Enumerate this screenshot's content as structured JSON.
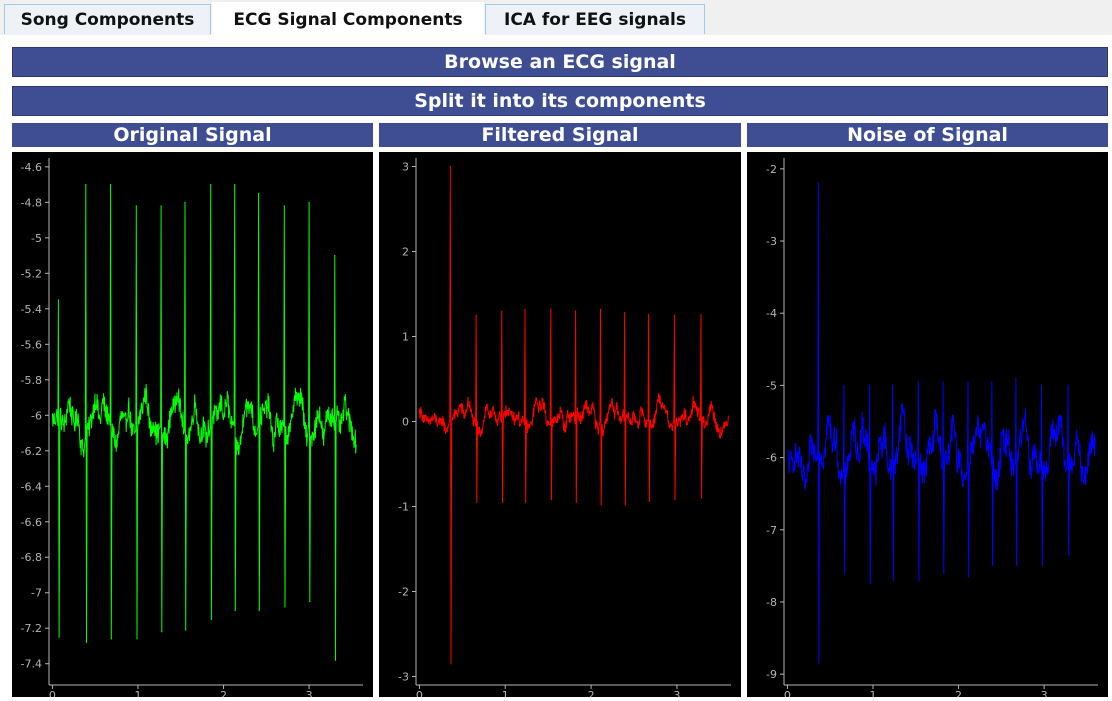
{
  "tabs": [
    {
      "label": "Song Components",
      "active": false
    },
    {
      "label": "ECG Signal Components",
      "active": true
    },
    {
      "label": "ICA for EEG signals",
      "active": false
    }
  ],
  "buttons": {
    "browse": "Browse an ECG signal",
    "split": "Split it into its components"
  },
  "colors": {
    "button_bg": "#3f4e93",
    "plot_bg": "#000000",
    "axis": "#b4b4b4"
  },
  "plots": [
    {
      "title": "Original Signal",
      "color": "#00ff00"
    },
    {
      "title": "Filtered Signal",
      "color": "#ff0000"
    },
    {
      "title": "Noise of Signal",
      "color": "#0000ff"
    }
  ],
  "chart_data": [
    {
      "type": "line",
      "title": "Original Signal",
      "color": "#00ff00",
      "xlim": [
        -0.04,
        3.63
      ],
      "ylim": [
        -7.52,
        -4.55
      ],
      "xticks": [
        0,
        1,
        2,
        3
      ],
      "yticks": [
        -4.6,
        -4.8,
        -5,
        -5.2,
        -5.4,
        -5.6,
        -5.8,
        -6,
        -6.2,
        -6.4,
        -6.6,
        -6.8,
        -7,
        -7.2,
        -7.4
      ],
      "duration": 3.55,
      "baseline": -6.08,
      "noise_amp": 0.1,
      "beats": [
        {
          "t": 0.07,
          "r": -5.35,
          "s": -7.25
        },
        {
          "t": 0.39,
          "r": -4.7,
          "s": -7.28
        },
        {
          "t": 0.68,
          "r": -4.7,
          "s": -7.26
        },
        {
          "t": 0.98,
          "r": -4.82,
          "s": -7.26
        },
        {
          "t": 1.27,
          "r": -4.82,
          "s": -7.22
        },
        {
          "t": 1.55,
          "r": -4.8,
          "s": -7.21
        },
        {
          "t": 1.85,
          "r": -4.7,
          "s": -7.15
        },
        {
          "t": 2.13,
          "r": -4.7,
          "s": -7.1
        },
        {
          "t": 2.41,
          "r": -4.75,
          "s": -7.1
        },
        {
          "t": 2.71,
          "r": -4.82,
          "s": -7.08
        },
        {
          "t": 3.0,
          "r": -4.8,
          "s": -7.05
        },
        {
          "t": 3.3,
          "r": -5.1,
          "s": -7.38
        }
      ]
    },
    {
      "type": "line",
      "title": "Filtered Signal",
      "color": "#ff0000",
      "xlim": [
        -0.04,
        3.63
      ],
      "ylim": [
        -3.1,
        3.1
      ],
      "xticks": [
        0,
        1,
        2,
        3
      ],
      "yticks": [
        3,
        2,
        1,
        0,
        -1,
        -2,
        -3
      ],
      "duration": 3.6,
      "baseline": 0.0,
      "noise_amp": 0.12,
      "beats": [
        {
          "t": 0.36,
          "r": 3.0,
          "s": -2.85
        },
        {
          "t": 0.66,
          "r": 1.25,
          "s": -0.95
        },
        {
          "t": 0.96,
          "r": 1.3,
          "s": -0.95
        },
        {
          "t": 1.23,
          "r": 1.32,
          "s": -0.95
        },
        {
          "t": 1.53,
          "r": 1.32,
          "s": -0.92
        },
        {
          "t": 1.82,
          "r": 1.3,
          "s": -0.95
        },
        {
          "t": 2.11,
          "r": 1.32,
          "s": -0.98
        },
        {
          "t": 2.39,
          "r": 1.28,
          "s": -0.98
        },
        {
          "t": 2.67,
          "r": 1.26,
          "s": -0.94
        },
        {
          "t": 2.97,
          "r": 1.25,
          "s": -0.92
        },
        {
          "t": 3.28,
          "r": 1.26,
          "s": -0.9
        }
      ]
    },
    {
      "type": "line",
      "title": "Noise of Signal",
      "color": "#0000ff",
      "xlim": [
        -0.04,
        3.63
      ],
      "ylim": [
        -9.15,
        -1.85
      ],
      "xticks": [
        0,
        1,
        2,
        3
      ],
      "yticks": [
        -2,
        -3,
        -4,
        -5,
        -6,
        -7,
        -8,
        -9
      ],
      "duration": 3.6,
      "baseline": -6.05,
      "noise_amp": 0.3,
      "beats": [
        {
          "t": 0.36,
          "r": -2.2,
          "s": -8.85
        },
        {
          "t": 0.66,
          "r": -5.0,
          "s": -7.6
        },
        {
          "t": 0.96,
          "r": -5.0,
          "s": -7.75
        },
        {
          "t": 1.23,
          "r": -5.0,
          "s": -7.7
        },
        {
          "t": 1.53,
          "r": -4.95,
          "s": -7.7
        },
        {
          "t": 1.82,
          "r": -4.95,
          "s": -7.6
        },
        {
          "t": 2.11,
          "r": -4.95,
          "s": -7.65
        },
        {
          "t": 2.39,
          "r": -4.95,
          "s": -7.5
        },
        {
          "t": 2.67,
          "r": -4.9,
          "s": -7.5
        },
        {
          "t": 2.97,
          "r": -5.0,
          "s": -7.5
        },
        {
          "t": 3.28,
          "r": -5.0,
          "s": -7.35
        }
      ]
    }
  ]
}
